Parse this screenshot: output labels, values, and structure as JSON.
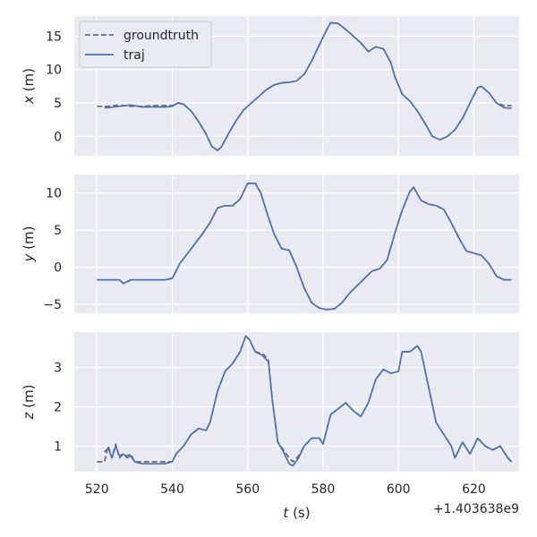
{
  "chart_data": {
    "type": "line",
    "x_offset_label": "+1.403638e9",
    "xlabel_var": "t",
    "xlabel_unit": " (s)",
    "xlim": [
      514,
      632
    ],
    "xticks": [
      520,
      540,
      560,
      580,
      600,
      620
    ],
    "legend": {
      "placement": "top-left of first panel",
      "entries": [
        "groundtruth",
        "traj"
      ]
    },
    "colors": {
      "groundtruth": "#6b6b6b",
      "traj": "#4c72b0",
      "background": "#eaeaf2",
      "grid": "#ffffff"
    },
    "panels": [
      {
        "ylabel_var": "x",
        "ylabel_unit": " (m)",
        "ylim": [
          -2.9,
          18
        ],
        "yticks": [
          0,
          5,
          10,
          15
        ],
        "series": [
          {
            "name": "groundtruth",
            "style": "dashed",
            "x": [
              520,
              523,
              526,
              529,
              532,
              535,
              538,
              540,
              541.5,
              543,
              545,
              547,
              549,
              550.5,
              552,
              553,
              555,
              557,
              559,
              561,
              563,
              565,
              567,
              569,
              571,
              573,
              575,
              577,
              579,
              581,
              582,
              584,
              586,
              588,
              590,
              592,
              594,
              596,
              598,
              599,
              601,
              603,
              605,
              607,
              609,
              611,
              613,
              615,
              617,
              619,
              621,
              622,
              624,
              626,
              628,
              630
            ],
            "y": [
              4.5,
              4.5,
              4.7,
              4.5,
              4.5,
              4.6,
              4.6,
              4.6,
              5.0,
              4.8,
              3.8,
              2.2,
              0.3,
              -1.5,
              -2.1,
              -1.6,
              0.5,
              2.4,
              4.0,
              5.0,
              6.0,
              7.0,
              7.7,
              8.0,
              8.1,
              8.3,
              9.3,
              11.3,
              13.7,
              16.0,
              17.0,
              16.9,
              16.0,
              15.0,
              14.0,
              12.7,
              13.4,
              13.1,
              11.0,
              9.0,
              6.3,
              5.3,
              3.8,
              2.0,
              0.0,
              -0.5,
              0.0,
              1.0,
              2.7,
              5.0,
              7.3,
              7.5,
              6.5,
              5.0,
              4.6,
              4.6
            ]
          },
          {
            "name": "traj",
            "style": "solid",
            "x": [
              522,
              523,
              526,
              529,
              532,
              535,
              538,
              540,
              541.5,
              543,
              545,
              547,
              549,
              550.5,
              552,
              553,
              555,
              557,
              559,
              561,
              563,
              565,
              567,
              569,
              571,
              573,
              575,
              577,
              579,
              581,
              582,
              584,
              586,
              588,
              590,
              592,
              594,
              596,
              598,
              599,
              601,
              603,
              605,
              607,
              609,
              611,
              613,
              615,
              617,
              619,
              621,
              622,
              624,
              626,
              628,
              630
            ],
            "y": [
              4.3,
              4.3,
              4.5,
              4.7,
              4.4,
              4.4,
              4.4,
              4.5,
              5.0,
              4.8,
              3.8,
              2.2,
              0.3,
              -1.5,
              -2.1,
              -1.6,
              0.5,
              2.4,
              4.0,
              5.0,
              6.0,
              7.0,
              7.7,
              8.0,
              8.1,
              8.3,
              9.3,
              11.3,
              13.7,
              16.0,
              17.0,
              16.9,
              16.0,
              15.0,
              14.0,
              12.7,
              13.4,
              13.1,
              11.0,
              9.0,
              6.3,
              5.3,
              3.8,
              2.0,
              0.0,
              -0.5,
              0.0,
              1.0,
              2.7,
              5.0,
              7.3,
              7.5,
              6.5,
              5.0,
              4.3,
              4.2
            ]
          }
        ]
      },
      {
        "ylabel_var": "y",
        "ylabel_unit": " (m)",
        "ylim": [
          -6.2,
          12.5
        ],
        "yticks": [
          -5,
          0,
          5,
          10
        ],
        "series": [
          {
            "name": "groundtruth",
            "style": "dashed",
            "x": [
              520,
              523,
              526,
              527,
              529,
              532,
              535,
              538,
              540,
              542,
              545,
              548,
              550,
              552,
              554,
              556,
              558,
              560,
              562,
              563.5,
              565,
              567,
              569,
              571,
              573,
              575,
              577,
              579,
              581,
              583,
              585,
              587,
              589,
              591,
              593,
              595,
              597,
              599,
              601,
              603,
              604,
              606,
              608,
              610,
              612,
              614,
              616,
              618,
              620,
              622,
              624,
              626,
              628,
              630
            ],
            "y": [
              -1.7,
              -1.7,
              -1.7,
              -2.2,
              -1.7,
              -1.7,
              -1.7,
              -1.7,
              -1.5,
              0.5,
              2.5,
              4.5,
              6.0,
              8.0,
              8.3,
              8.3,
              9.2,
              11.3,
              11.3,
              10.0,
              7.5,
              4.5,
              2.5,
              2.3,
              0.0,
              -2.8,
              -4.8,
              -5.5,
              -5.7,
              -5.6,
              -4.8,
              -3.5,
              -2.5,
              -1.5,
              -0.5,
              -0.2,
              1.0,
              4.5,
              7.7,
              10.2,
              10.8,
              9.0,
              8.5,
              8.3,
              7.8,
              6.0,
              4.0,
              2.2,
              1.9,
              1.6,
              0.5,
              -1.2,
              -1.7,
              -1.7
            ]
          },
          {
            "name": "traj",
            "style": "solid",
            "x": [
              520,
              523,
              526,
              527,
              529,
              532,
              535,
              538,
              540,
              542,
              545,
              548,
              550,
              552,
              554,
              556,
              558,
              560,
              562,
              563.5,
              565,
              567,
              569,
              571,
              573,
              575,
              577,
              579,
              581,
              583,
              585,
              587,
              589,
              591,
              593,
              595,
              597,
              599,
              601,
              603,
              604,
              606,
              608,
              610,
              612,
              614,
              616,
              618,
              620,
              622,
              624,
              626,
              628,
              630
            ],
            "y": [
              -1.7,
              -1.7,
              -1.7,
              -2.2,
              -1.7,
              -1.7,
              -1.7,
              -1.7,
              -1.5,
              0.5,
              2.5,
              4.5,
              6.0,
              8.0,
              8.3,
              8.3,
              9.2,
              11.3,
              11.3,
              10.0,
              7.5,
              4.5,
              2.5,
              2.3,
              0.0,
              -2.8,
              -4.8,
              -5.5,
              -5.7,
              -5.6,
              -4.8,
              -3.5,
              -2.5,
              -1.5,
              -0.5,
              -0.2,
              1.0,
              4.5,
              7.7,
              10.2,
              10.8,
              9.0,
              8.5,
              8.3,
              7.8,
              6.0,
              4.0,
              2.2,
              1.9,
              1.6,
              0.5,
              -1.2,
              -1.7,
              -1.7
            ]
          }
        ]
      },
      {
        "ylabel_var": "z",
        "ylabel_unit": " (m)",
        "ylim": [
          0.35,
          3.9
        ],
        "yticks": [
          1,
          2,
          3
        ],
        "series": [
          {
            "name": "groundtruth",
            "style": "dashed",
            "x": [
              520,
              522,
              523,
              524,
              525,
              526,
              527,
              528,
              529,
              530,
              532,
              535,
              538,
              540,
              541,
              543,
              545,
              547,
              549,
              550,
              552,
              554,
              556,
              558,
              559.5,
              560.5,
              562,
              564,
              565.5,
              566.5,
              568,
              569.5,
              571,
              572,
              573.5,
              575,
              577,
              579,
              580,
              582,
              584,
              586,
              588,
              590,
              592,
              594,
              596,
              598,
              600,
              601,
              603,
              605,
              606,
              608,
              610,
              612,
              614,
              615,
              617,
              619,
              621,
              623,
              625,
              627,
              629,
              630
            ],
            "y": [
              0.6,
              0.6,
              1.0,
              0.7,
              1.05,
              0.7,
              0.8,
              0.75,
              0.8,
              0.6,
              0.6,
              0.6,
              0.6,
              0.6,
              0.8,
              1.0,
              1.3,
              1.45,
              1.4,
              1.6,
              2.4,
              2.9,
              3.1,
              3.4,
              3.8,
              3.7,
              3.4,
              3.35,
              3.2,
              2.2,
              1.1,
              0.9,
              0.7,
              0.6,
              0.75,
              1.0,
              1.2,
              1.2,
              1.05,
              1.8,
              1.95,
              2.1,
              1.9,
              1.75,
              2.1,
              2.7,
              2.95,
              2.85,
              2.9,
              3.4,
              3.4,
              3.55,
              3.4,
              2.5,
              1.6,
              1.3,
              1.0,
              0.7,
              1.1,
              0.8,
              1.2,
              1.0,
              0.9,
              1.0,
              0.7,
              0.6
            ]
          },
          {
            "name": "traj",
            "style": "solid",
            "x": [
              522,
              523,
              524,
              525,
              526,
              527,
              528,
              529,
              530,
              532,
              535,
              538,
              540,
              541,
              543,
              545,
              547,
              549,
              550,
              552,
              554,
              556,
              558,
              559.5,
              560.5,
              562,
              564,
              565.5,
              566.5,
              568,
              569.5,
              571,
              572,
              573.5,
              575,
              577,
              579,
              580,
              582,
              584,
              586,
              588,
              590,
              592,
              594,
              596,
              598,
              600,
              601,
              603,
              605,
              606,
              608,
              610,
              612,
              614,
              615,
              617,
              619,
              621,
              623,
              625,
              627,
              629,
              630
            ],
            "y": [
              0.85,
              0.95,
              0.7,
              1.0,
              0.75,
              0.8,
              0.7,
              0.75,
              0.6,
              0.55,
              0.55,
              0.55,
              0.6,
              0.8,
              1.0,
              1.3,
              1.45,
              1.4,
              1.6,
              2.4,
              2.9,
              3.1,
              3.4,
              3.8,
              3.7,
              3.4,
              3.3,
              3.15,
              2.2,
              1.1,
              0.85,
              0.55,
              0.5,
              0.7,
              1.0,
              1.2,
              1.2,
              1.05,
              1.8,
              1.95,
              2.1,
              1.9,
              1.75,
              2.1,
              2.7,
              2.95,
              2.85,
              2.9,
              3.4,
              3.4,
              3.55,
              3.4,
              2.5,
              1.6,
              1.3,
              1.0,
              0.7,
              1.1,
              0.8,
              1.2,
              1.0,
              0.9,
              1.0,
              0.7,
              0.6
            ]
          }
        ]
      }
    ]
  }
}
